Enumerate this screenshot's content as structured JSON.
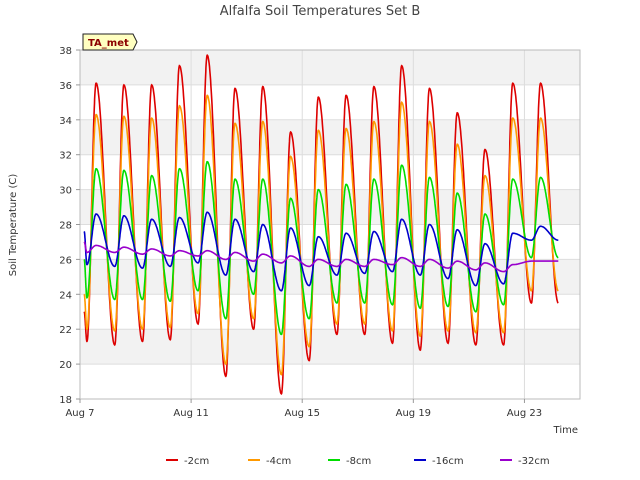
{
  "chart_data": {
    "type": "line",
    "title": "Alfalfa Soil Temperatures Set B",
    "xlabel": "Time",
    "ylabel": "Soil Temperature (C)",
    "badge": "TA_met",
    "x_ticks": [
      {
        "day": 7,
        "label": "Aug 7"
      },
      {
        "day": 11,
        "label": "Aug 11"
      },
      {
        "day": 15,
        "label": "Aug 15"
      },
      {
        "day": 19,
        "label": "Aug 19"
      },
      {
        "day": 23,
        "label": "Aug 23"
      }
    ],
    "xlim": [
      7,
      25
    ],
    "ylim": [
      18,
      38
    ],
    "y_ticks": [
      18,
      20,
      22,
      24,
      26,
      28,
      30,
      32,
      34,
      36,
      38
    ],
    "grid": true,
    "legend_position": "bottom",
    "peak_day_offset": 0.58,
    "series": [
      {
        "name": "-2cm",
        "color": "#dd0000",
        "start": 23.0,
        "end": 23.5,
        "daily_max": [
          36.1,
          36.0,
          36.0,
          37.1,
          37.7,
          35.8,
          35.9,
          33.3,
          35.3,
          35.4,
          35.9,
          37.1,
          35.8,
          34.4,
          32.3,
          36.1,
          36.1
        ],
        "daily_min": [
          21.3,
          21.1,
          21.3,
          21.4,
          22.3,
          19.3,
          22.0,
          18.3,
          20.2,
          21.7,
          21.7,
          21.2,
          20.8,
          21.2,
          21.1,
          21.1,
          23.5
        ]
      },
      {
        "name": "-4cm",
        "color": "#ff9900",
        "start": 24.0,
        "end": 24.2,
        "daily_max": [
          34.3,
          34.2,
          34.1,
          34.8,
          35.4,
          33.8,
          33.9,
          31.9,
          33.4,
          33.5,
          33.9,
          35.0,
          33.9,
          32.6,
          30.8,
          34.1,
          34.1
        ],
        "daily_min": [
          22.0,
          21.9,
          22.0,
          22.1,
          22.9,
          20.0,
          22.6,
          19.4,
          21.0,
          22.3,
          22.3,
          21.9,
          21.6,
          21.9,
          21.8,
          21.8,
          24.2
        ]
      },
      {
        "name": "-8cm",
        "color": "#00dd00",
        "start": 26.0,
        "end": 26.1,
        "daily_max": [
          31.2,
          31.1,
          30.8,
          31.2,
          31.6,
          30.6,
          30.6,
          29.5,
          30.0,
          30.3,
          30.6,
          31.4,
          30.7,
          29.8,
          28.6,
          30.6,
          30.7
        ],
        "daily_min": [
          23.8,
          23.7,
          23.7,
          23.6,
          24.2,
          22.6,
          24.0,
          21.7,
          22.6,
          23.5,
          23.5,
          23.4,
          23.2,
          23.3,
          23.0,
          23.4,
          26.1
        ]
      },
      {
        "name": "-16cm",
        "color": "#0000cc",
        "start": 27.6,
        "end": 27.1,
        "daily_max": [
          28.6,
          28.5,
          28.3,
          28.4,
          28.7,
          28.3,
          28.0,
          27.8,
          27.3,
          27.5,
          27.6,
          28.3,
          28.0,
          27.7,
          26.9,
          27.5,
          27.9
        ],
        "daily_min": [
          25.7,
          25.6,
          25.5,
          25.6,
          25.8,
          25.1,
          25.3,
          24.2,
          24.5,
          25.1,
          25.2,
          25.3,
          25.1,
          24.9,
          24.5,
          24.6,
          27.1
        ]
      },
      {
        "name": "-32cm",
        "color": "#9900cc",
        "start": 27.0,
        "end": 25.9,
        "daily_max": [
          26.8,
          26.7,
          26.6,
          26.5,
          26.5,
          26.4,
          26.3,
          26.2,
          26.0,
          26.0,
          26.0,
          26.1,
          26.0,
          25.9,
          25.8,
          25.7,
          25.9
        ],
        "daily_min": [
          26.4,
          26.4,
          26.3,
          26.2,
          26.2,
          26.0,
          25.9,
          25.8,
          25.6,
          25.6,
          25.6,
          25.7,
          25.6,
          25.5,
          25.4,
          25.3,
          25.9
        ]
      }
    ]
  }
}
